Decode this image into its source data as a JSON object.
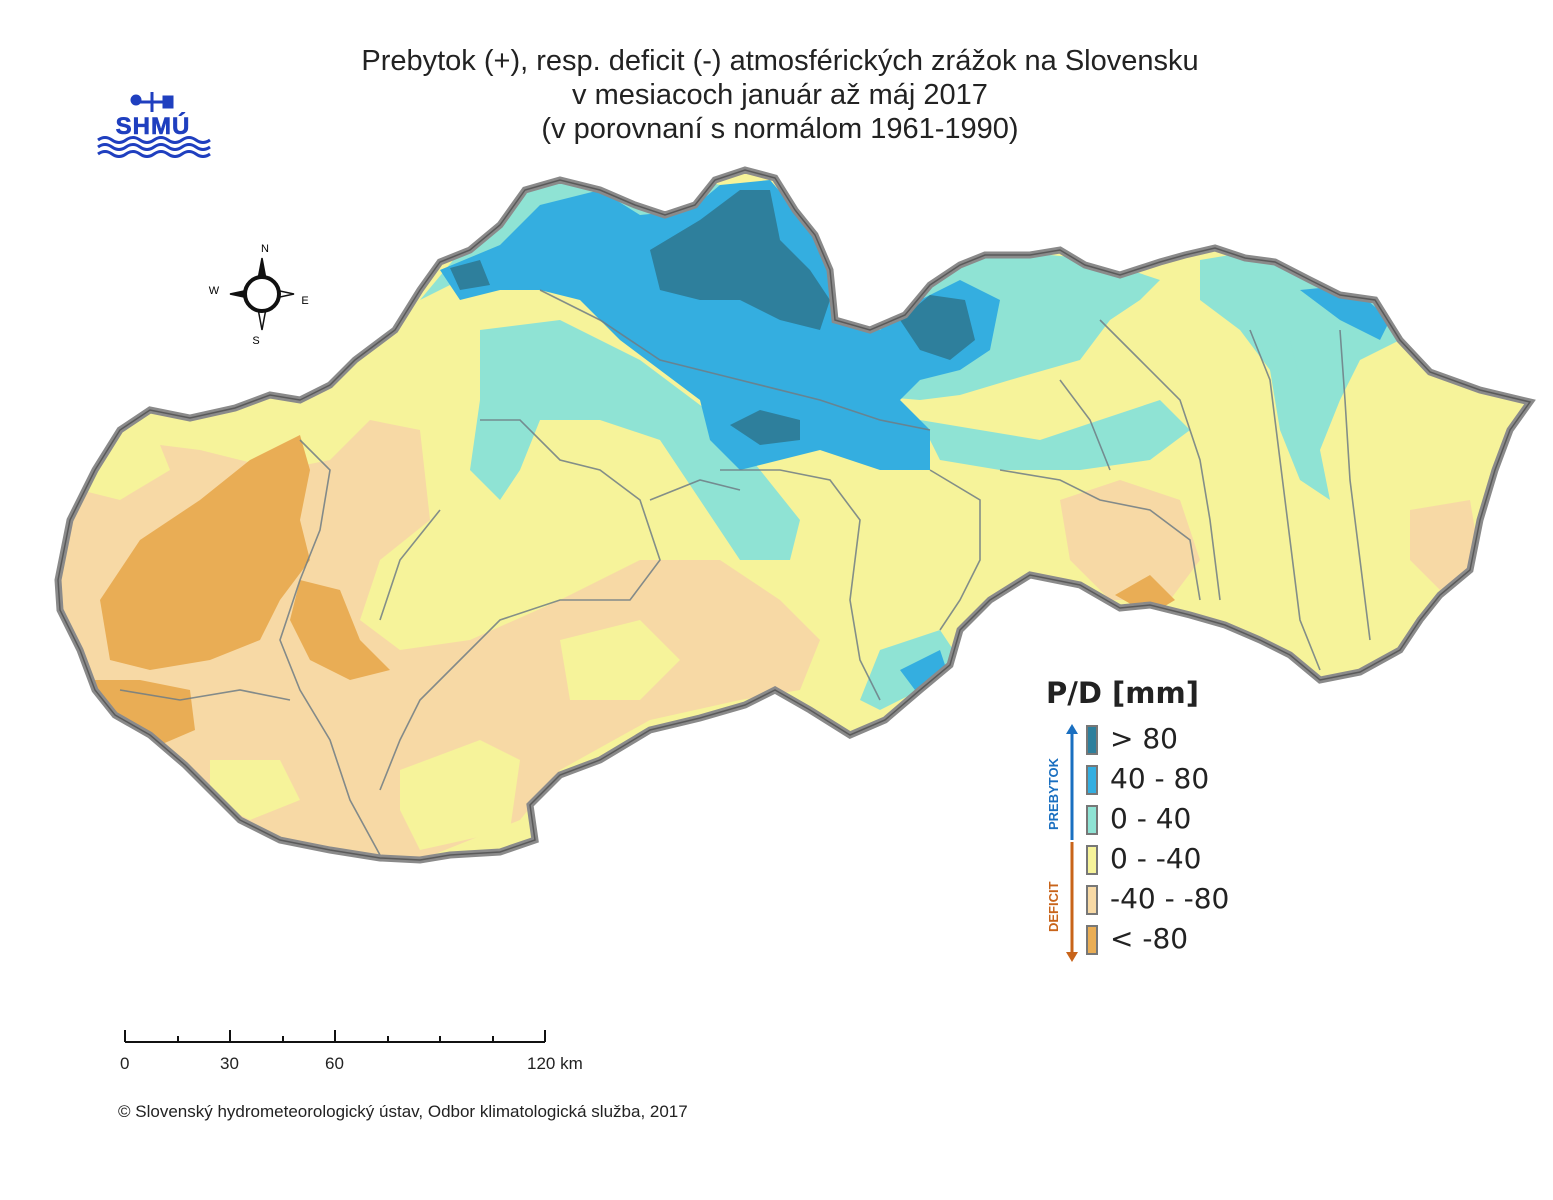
{
  "title": {
    "line1": "Prebytok (+), resp. deficit (-) atmosférických zrážok na Slovensku",
    "line2": "v mesiacoch január až máj 2017",
    "line3": "(v porovnaní s normálom 1961-1990)"
  },
  "logo": {
    "text": "SHMÚ",
    "color": "#1f3fbf"
  },
  "compass": {
    "n": "N",
    "s": "S",
    "e": "E",
    "w": "W"
  },
  "legend": {
    "title": "P/D [mm]",
    "surplus_label": "PREBYTOK",
    "deficit_label": "DEFICIT",
    "surplus_color": "#1a6fc0",
    "deficit_color": "#c8641a",
    "classes": [
      {
        "label": "> 80",
        "color": "#2e7f9c"
      },
      {
        "label": "40 - 80",
        "color": "#34aee0"
      },
      {
        "label": "0 - 40",
        "color": "#8fe3d4"
      },
      {
        "label": "0 - -40",
        "color": "#f6f39a"
      },
      {
        "label": "-40 - -80",
        "color": "#f7d9a5"
      },
      {
        "label": "< -80",
        "color": "#e9ad55"
      }
    ]
  },
  "scalebar": {
    "ticks": [
      "0",
      "30",
      "60",
      "120 km"
    ]
  },
  "copyright": "© Slovenský hydrometeorologický ústav, Odbor klimatologická služba, 2017"
}
